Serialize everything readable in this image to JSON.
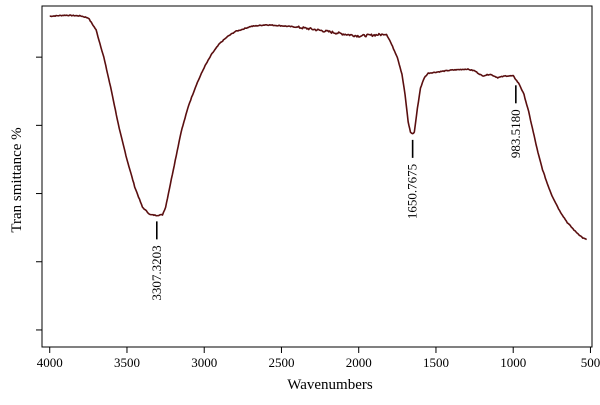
{
  "chart_data": {
    "type": "line",
    "title": "",
    "xlabel": "Wavenumbers",
    "ylabel": "Tran smittance %",
    "x_reversed": true,
    "xlim": [
      4050,
      490
    ],
    "ylim": [
      0,
      100
    ],
    "y_ticks_labeled": false,
    "grid": false,
    "x_ticks": [
      {
        "value": 4000,
        "label": "4000"
      },
      {
        "value": 3500,
        "label": "3500"
      },
      {
        "value": 3000,
        "label": "3000"
      },
      {
        "value": 2500,
        "label": "2500"
      },
      {
        "value": 2000,
        "label": "2000"
      },
      {
        "value": 1500,
        "label": "1500"
      },
      {
        "value": 1000,
        "label": "1000"
      },
      {
        "value": 500,
        "label": "500"
      }
    ],
    "y_tick_values": [
      5,
      25,
      45,
      65,
      85
    ],
    "line_color": "#5a0f10",
    "series": [
      {
        "points": [
          [
            4000,
            97
          ],
          [
            3900,
            97.3
          ],
          [
            3800,
            97.1
          ],
          [
            3750,
            96.5
          ],
          [
            3700,
            93
          ],
          [
            3650,
            85
          ],
          [
            3600,
            75
          ],
          [
            3550,
            64
          ],
          [
            3500,
            55
          ],
          [
            3450,
            47
          ],
          [
            3400,
            41
          ],
          [
            3350,
            38.8
          ],
          [
            3307,
            38.6
          ],
          [
            3270,
            38.8
          ],
          [
            3250,
            41
          ],
          [
            3200,
            52
          ],
          [
            3150,
            63
          ],
          [
            3100,
            71
          ],
          [
            3050,
            77
          ],
          [
            3000,
            82
          ],
          [
            2950,
            86
          ],
          [
            2900,
            89
          ],
          [
            2850,
            91
          ],
          [
            2800,
            92.5
          ],
          [
            2750,
            93.2
          ],
          [
            2700,
            94
          ],
          [
            2600,
            94.5
          ],
          [
            2500,
            94.2
          ],
          [
            2400,
            93.8
          ],
          [
            2300,
            93.2
          ],
          [
            2200,
            92.5
          ],
          [
            2100,
            91.8
          ],
          [
            2000,
            91.2
          ],
          [
            1900,
            91.5
          ],
          [
            1820,
            91.7
          ],
          [
            1800,
            90
          ],
          [
            1750,
            85
          ],
          [
            1720,
            80
          ],
          [
            1700,
            74
          ],
          [
            1680,
            66
          ],
          [
            1665,
            63
          ],
          [
            1651,
            62.5
          ],
          [
            1640,
            63
          ],
          [
            1620,
            70
          ],
          [
            1600,
            76
          ],
          [
            1575,
            79
          ],
          [
            1550,
            80.3
          ],
          [
            1500,
            80.6
          ],
          [
            1400,
            81.2
          ],
          [
            1300,
            81.5
          ],
          [
            1250,
            81
          ],
          [
            1200,
            79.5
          ],
          [
            1150,
            80
          ],
          [
            1100,
            79
          ],
          [
            1050,
            79.5
          ],
          [
            1000,
            79.5
          ],
          [
            984,
            78.5
          ],
          [
            960,
            77
          ],
          [
            930,
            74
          ],
          [
            900,
            69
          ],
          [
            870,
            63
          ],
          [
            840,
            57
          ],
          [
            810,
            52
          ],
          [
            780,
            48
          ],
          [
            750,
            44.5
          ],
          [
            700,
            40
          ],
          [
            650,
            36.5
          ],
          [
            600,
            34
          ],
          [
            550,
            32
          ],
          [
            525,
            31.5
          ]
        ]
      }
    ],
    "peak_annotations": [
      {
        "x": 3307,
        "y": 38.6,
        "label": "3307.3203"
      },
      {
        "x": 1651,
        "y": 62.5,
        "label": "1650.7675"
      },
      {
        "x": 983,
        "y": 78.5,
        "label": "983.5180"
      }
    ]
  }
}
